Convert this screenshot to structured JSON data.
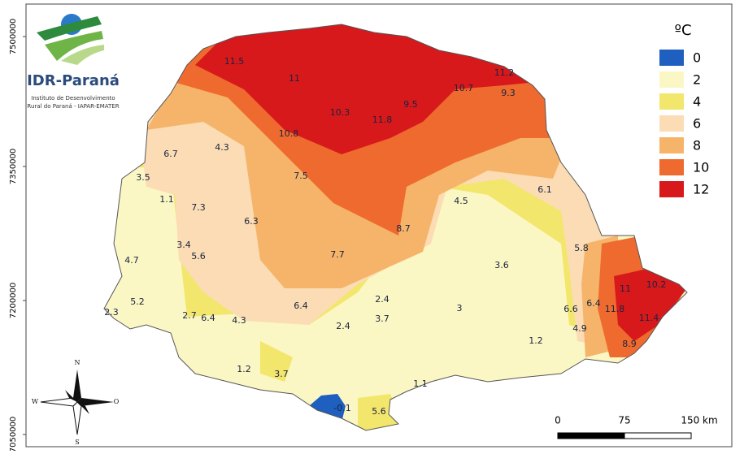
{
  "logo": {
    "name": "IDR-Paraná",
    "subtitle_line1": "Instituto de Desenvolvimento",
    "subtitle_line2": "Rural do Paraná - IAPAR-EMATER"
  },
  "y_axis_labels": [
    "7500000",
    "7350000",
    "7200000",
    "7050000"
  ],
  "legend": {
    "title": "ºC",
    "items": [
      {
        "label": "0",
        "color": "#1f5fbf"
      },
      {
        "label": "2",
        "color": "#fbf7c4"
      },
      {
        "label": "4",
        "color": "#f3e66c"
      },
      {
        "label": "6",
        "color": "#fbdcb4"
      },
      {
        "label": "8",
        "color": "#f6b46a"
      },
      {
        "label": "10",
        "color": "#ef6a2e"
      },
      {
        "label": "12",
        "color": "#d7191c"
      }
    ]
  },
  "stations": [
    11.5,
    11,
    11.2,
    10.7,
    9.3,
    9.5,
    10.3,
    11.8,
    10.8,
    6.7,
    4.3,
    3.5,
    7.5,
    6.1,
    1.1,
    7.3,
    4.5,
    6.3,
    8.7,
    3.4,
    5.6,
    5.8,
    7.7,
    4.7,
    3.6,
    11,
    10.2,
    5.2,
    2.4,
    6.4,
    3,
    6.6,
    6.4,
    11.8,
    2.3,
    2.7,
    6.4,
    3.7,
    11.4,
    4.3,
    2.4,
    4.9,
    1.2,
    8.9,
    1.2,
    3.7,
    1.1,
    -0.1,
    5.6
  ],
  "compass": {
    "north": "N",
    "west": "W",
    "east": "O",
    "south": "S"
  },
  "scale_bar": {
    "labels": [
      "0",
      "75",
      "150 km"
    ]
  }
}
